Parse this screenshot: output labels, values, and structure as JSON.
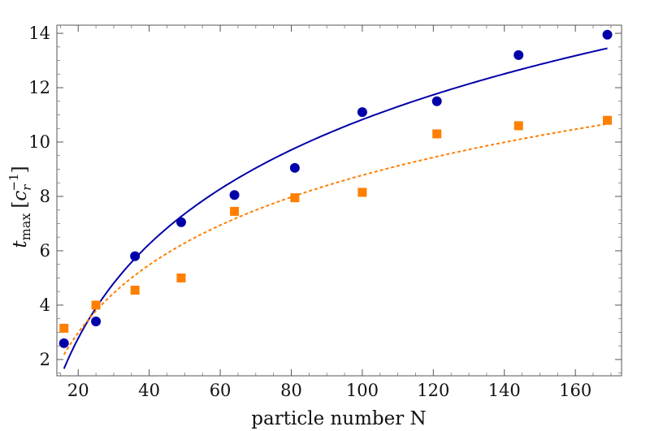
{
  "chart_data": {
    "type": "scatter",
    "title": "",
    "xlabel": "particle number N",
    "ylabel": {
      "main": "t",
      "subscript": "max",
      "bracket_open": "[",
      "unit_letter": "c",
      "unit_subscript": "r",
      "unit_superscript": "−1",
      "bracket_close": "]"
    },
    "xlim": [
      14,
      173
    ],
    "ylim": [
      1.4,
      14.3
    ],
    "xticks": [
      20,
      40,
      60,
      80,
      100,
      120,
      140,
      160
    ],
    "yticks": [
      2,
      4,
      6,
      8,
      10,
      12,
      14
    ],
    "x_minor_step": 5,
    "y_minor_step": 0.5,
    "series": [
      {
        "name": "blue circles",
        "marker": "circle",
        "color": "#0000a8",
        "points": [
          {
            "x": 16,
            "y": 2.6
          },
          {
            "x": 25,
            "y": 3.4
          },
          {
            "x": 36,
            "y": 5.8
          },
          {
            "x": 49,
            "y": 7.05
          },
          {
            "x": 64,
            "y": 8.05
          },
          {
            "x": 81,
            "y": 9.05
          },
          {
            "x": 100,
            "y": 11.1
          },
          {
            "x": 121,
            "y": 11.5
          },
          {
            "x": 144,
            "y": 13.2
          },
          {
            "x": 169,
            "y": 13.95
          }
        ]
      },
      {
        "name": "orange squares",
        "marker": "square",
        "color": "#ff7f00",
        "points": [
          {
            "x": 16,
            "y": 3.15
          },
          {
            "x": 25,
            "y": 4.0
          },
          {
            "x": 36,
            "y": 4.55
          },
          {
            "x": 49,
            "y": 5.0
          },
          {
            "x": 64,
            "y": 7.45
          },
          {
            "x": 81,
            "y": 7.95
          },
          {
            "x": 100,
            "y": 8.15
          },
          {
            "x": 121,
            "y": 10.3
          },
          {
            "x": 144,
            "y": 10.6
          },
          {
            "x": 169,
            "y": 10.8
          }
        ]
      }
    ],
    "fits": [
      {
        "name": "blue solid fit",
        "style": "solid",
        "color": "#0000a8",
        "model": "a*ln(N) + b",
        "a": 5.0,
        "b": -12.2,
        "x_range": [
          16,
          169
        ]
      },
      {
        "name": "orange dashed fit",
        "style": "dashed",
        "color": "#ff7f00",
        "model": "a*ln(N) + b",
        "a": 3.6,
        "b": -7.8,
        "x_range": [
          16,
          169
        ]
      }
    ]
  }
}
